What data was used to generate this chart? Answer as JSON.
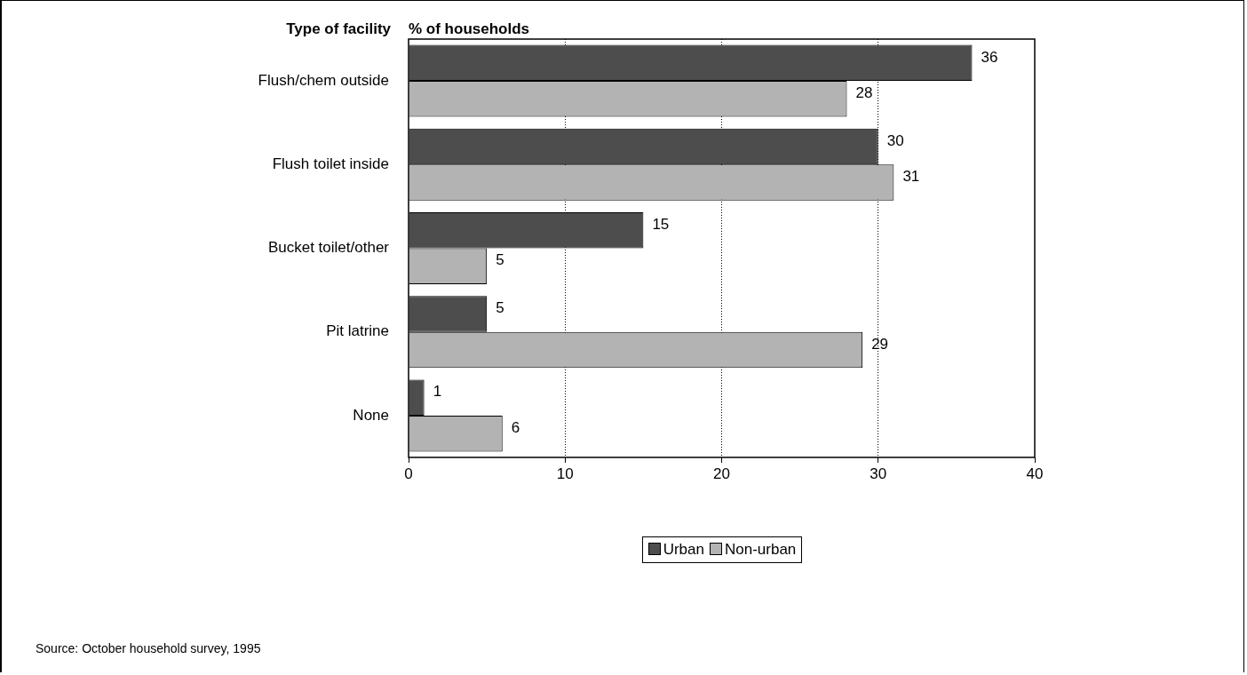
{
  "chart_data": {
    "type": "bar",
    "orientation": "horizontal",
    "ylabel": "Type of facility",
    "xlabel": "% of households",
    "categories": [
      "Flush/chem outside",
      "Flush toilet inside",
      "Bucket toilet/other",
      "Pit latrine",
      "None"
    ],
    "series": [
      {
        "name": "Urban",
        "color": "#4d4d4d",
        "values": [
          36,
          30,
          15,
          5,
          1
        ]
      },
      {
        "name": "Non-urban",
        "color": "#b3b3b3",
        "values": [
          28,
          31,
          5,
          29,
          6
        ]
      }
    ],
    "xlim": [
      0,
      40
    ],
    "xticks": [
      0,
      10,
      20,
      30,
      40
    ],
    "grid": "x",
    "data_labels": true,
    "legend": "bottom",
    "annotations": [
      "Source: October household survey, 1995"
    ]
  }
}
